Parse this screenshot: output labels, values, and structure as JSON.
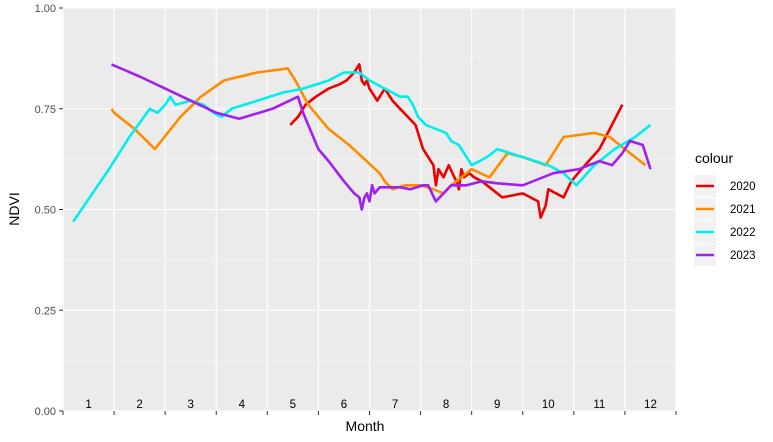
{
  "chart_data": {
    "type": "line",
    "title": "",
    "xlabel": "Month",
    "ylabel": "NDVI",
    "xlim": [
      0.5,
      12.5
    ],
    "ylim": [
      0,
      1
    ],
    "y_ticks": [
      {
        "value": 0,
        "label": "0.00"
      },
      {
        "value": 0.25,
        "label": "0.25"
      },
      {
        "value": 0.5,
        "label": "0.50"
      },
      {
        "value": 0.75,
        "label": "0.75"
      },
      {
        "value": 1,
        "label": "1.00"
      }
    ],
    "month_labels": [
      "1",
      "2",
      "3",
      "4",
      "5",
      "6",
      "7",
      "8",
      "9",
      "10",
      "11",
      "12"
    ],
    "grid": true,
    "legend": {
      "title": "colour",
      "position": "right"
    },
    "series": [
      {
        "name": "2020",
        "color": "#ee0000",
        "points": [
          [
            4.45,
            0.71
          ],
          [
            4.6,
            0.73
          ],
          [
            4.75,
            0.76
          ],
          [
            4.95,
            0.78
          ],
          [
            5.2,
            0.8
          ],
          [
            5.4,
            0.81
          ],
          [
            5.55,
            0.82
          ],
          [
            5.7,
            0.84
          ],
          [
            5.8,
            0.86
          ],
          [
            5.85,
            0.82
          ],
          [
            5.9,
            0.81
          ],
          [
            5.95,
            0.82
          ],
          [
            6.0,
            0.8
          ],
          [
            6.05,
            0.79
          ],
          [
            6.15,
            0.77
          ],
          [
            6.3,
            0.8
          ],
          [
            6.45,
            0.77
          ],
          [
            6.6,
            0.75
          ],
          [
            6.9,
            0.71
          ],
          [
            7.05,
            0.65
          ],
          [
            7.15,
            0.63
          ],
          [
            7.25,
            0.61
          ],
          [
            7.3,
            0.56
          ],
          [
            7.35,
            0.6
          ],
          [
            7.45,
            0.58
          ],
          [
            7.55,
            0.61
          ],
          [
            7.7,
            0.57
          ],
          [
            7.75,
            0.55
          ],
          [
            7.8,
            0.6
          ],
          [
            7.85,
            0.58
          ],
          [
            7.95,
            0.59
          ],
          [
            8.05,
            0.58
          ],
          [
            8.2,
            0.57
          ],
          [
            8.4,
            0.55
          ],
          [
            8.6,
            0.53
          ],
          [
            9.0,
            0.54
          ],
          [
            9.3,
            0.52
          ],
          [
            9.35,
            0.48
          ],
          [
            9.45,
            0.51
          ],
          [
            9.5,
            0.55
          ],
          [
            9.8,
            0.53
          ],
          [
            9.95,
            0.57
          ],
          [
            10.15,
            0.6
          ],
          [
            10.5,
            0.65
          ],
          [
            10.95,
            0.76
          ]
        ]
      },
      {
        "name": "2021",
        "color": "#ff8c00",
        "points": [
          [
            0.95,
            0.75
          ],
          [
            1.0,
            0.74
          ],
          [
            1.1,
            0.73
          ],
          [
            1.4,
            0.7
          ],
          [
            1.8,
            0.65
          ],
          [
            2.3,
            0.73
          ],
          [
            2.7,
            0.78
          ],
          [
            3.15,
            0.82
          ],
          [
            3.8,
            0.84
          ],
          [
            4.4,
            0.85
          ],
          [
            4.55,
            0.82
          ],
          [
            4.8,
            0.76
          ],
          [
            5.2,
            0.7
          ],
          [
            5.6,
            0.66
          ],
          [
            6.2,
            0.59
          ],
          [
            6.3,
            0.57
          ],
          [
            6.45,
            0.55
          ],
          [
            6.7,
            0.56
          ],
          [
            7.0,
            0.56
          ],
          [
            7.25,
            0.55
          ],
          [
            7.45,
            0.54
          ],
          [
            7.6,
            0.56
          ],
          [
            8.0,
            0.6
          ],
          [
            8.35,
            0.58
          ],
          [
            8.7,
            0.64
          ],
          [
            9.0,
            0.63
          ],
          [
            9.45,
            0.61
          ],
          [
            9.8,
            0.68
          ],
          [
            10.4,
            0.69
          ],
          [
            10.7,
            0.68
          ],
          [
            11.0,
            0.65
          ],
          [
            11.4,
            0.61
          ]
        ]
      },
      {
        "name": "2022",
        "color": "#00eeee",
        "points": [
          [
            0.2,
            0.47
          ],
          [
            0.9,
            0.6
          ],
          [
            1.3,
            0.68
          ],
          [
            1.7,
            0.75
          ],
          [
            1.85,
            0.74
          ],
          [
            2.0,
            0.76
          ],
          [
            2.1,
            0.78
          ],
          [
            2.2,
            0.76
          ],
          [
            2.5,
            0.77
          ],
          [
            2.75,
            0.76
          ],
          [
            2.95,
            0.74
          ],
          [
            3.1,
            0.73
          ],
          [
            3.3,
            0.75
          ],
          [
            3.8,
            0.77
          ],
          [
            4.3,
            0.79
          ],
          [
            4.7,
            0.8
          ],
          [
            5.2,
            0.82
          ],
          [
            5.5,
            0.84
          ],
          [
            5.8,
            0.84
          ],
          [
            6.0,
            0.82
          ],
          [
            6.3,
            0.8
          ],
          [
            6.6,
            0.78
          ],
          [
            6.75,
            0.78
          ],
          [
            6.85,
            0.76
          ],
          [
            6.95,
            0.73
          ],
          [
            7.1,
            0.71
          ],
          [
            7.3,
            0.7
          ],
          [
            7.5,
            0.69
          ],
          [
            7.6,
            0.67
          ],
          [
            7.75,
            0.66
          ],
          [
            7.9,
            0.63
          ],
          [
            8.0,
            0.61
          ],
          [
            8.3,
            0.63
          ],
          [
            8.5,
            0.65
          ],
          [
            9.0,
            0.63
          ],
          [
            9.5,
            0.61
          ],
          [
            9.8,
            0.59
          ],
          [
            10.05,
            0.56
          ],
          [
            10.4,
            0.61
          ],
          [
            10.8,
            0.65
          ],
          [
            11.2,
            0.68
          ],
          [
            11.5,
            0.71
          ]
        ]
      },
      {
        "name": "2023",
        "color": "#a020f0",
        "points": [
          [
            0.95,
            0.86
          ],
          [
            1.5,
            0.83
          ],
          [
            2.0,
            0.8
          ],
          [
            2.5,
            0.77
          ],
          [
            3.0,
            0.74
          ],
          [
            3.45,
            0.725
          ],
          [
            4.1,
            0.75
          ],
          [
            4.6,
            0.78
          ],
          [
            4.7,
            0.74
          ],
          [
            5.0,
            0.65
          ],
          [
            5.2,
            0.62
          ],
          [
            5.5,
            0.57
          ],
          [
            5.7,
            0.54
          ],
          [
            5.8,
            0.53
          ],
          [
            5.85,
            0.5
          ],
          [
            5.9,
            0.53
          ],
          [
            5.95,
            0.54
          ],
          [
            6.0,
            0.52
          ],
          [
            6.05,
            0.56
          ],
          [
            6.1,
            0.54
          ],
          [
            6.2,
            0.555
          ],
          [
            6.6,
            0.555
          ],
          [
            6.8,
            0.55
          ],
          [
            7.05,
            0.56
          ],
          [
            7.15,
            0.56
          ],
          [
            7.3,
            0.52
          ],
          [
            7.6,
            0.56
          ],
          [
            7.9,
            0.56
          ],
          [
            8.2,
            0.57
          ],
          [
            8.5,
            0.565
          ],
          [
            9.0,
            0.56
          ],
          [
            9.6,
            0.59
          ],
          [
            10.1,
            0.6
          ],
          [
            10.5,
            0.62
          ],
          [
            10.75,
            0.61
          ],
          [
            10.95,
            0.64
          ],
          [
            11.1,
            0.67
          ],
          [
            11.35,
            0.66
          ],
          [
            11.5,
            0.6
          ]
        ]
      }
    ]
  }
}
